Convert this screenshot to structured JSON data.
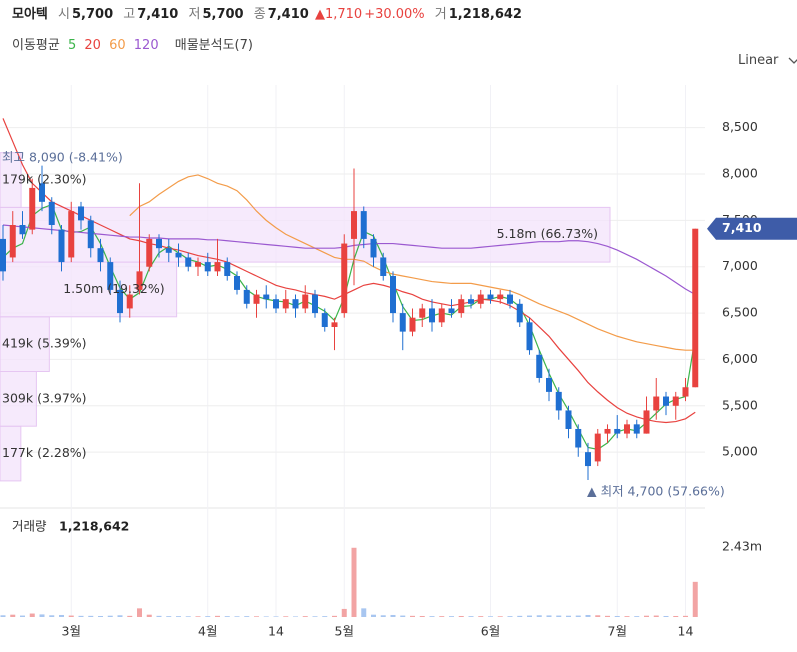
{
  "header": {
    "name": "모아텍",
    "fields": [
      {
        "label": "시",
        "value": "5,700"
      },
      {
        "label": "고",
        "value": "7,410"
      },
      {
        "label": "저",
        "value": "5,700"
      },
      {
        "label": "종",
        "value": "7,410"
      }
    ],
    "change": "▲1,710",
    "change_pct": "+30.00%",
    "volume_label": "거",
    "volume": "1,218,642"
  },
  "ma_title": "이동평균",
  "profile_title": "매물분석도(7)",
  "scale_mode": "Linear",
  "chart_data": {
    "type": "candlestick",
    "ylim": [
      4430,
      8960
    ],
    "yticks": [
      {
        "value": 5000,
        "label": "5,000"
      },
      {
        "value": 5500,
        "label": "5,500"
      },
      {
        "value": 6000,
        "label": "6,000"
      },
      {
        "value": 6500,
        "label": "6,500"
      },
      {
        "value": 7000,
        "label": "7,000"
      },
      {
        "value": 7500,
        "label": "7,500"
      },
      {
        "value": 8000,
        "label": "8,000"
      },
      {
        "value": 8500,
        "label": "8,500"
      }
    ],
    "grid": true,
    "up_color": "#e8423f",
    "down_color": "#1f6fd1",
    "categories": [
      null,
      null,
      null,
      null,
      null,
      null,
      null,
      "3월",
      null,
      null,
      null,
      null,
      null,
      null,
      null,
      null,
      null,
      null,
      null,
      null,
      null,
      "4월",
      null,
      null,
      null,
      null,
      null,
      null,
      "14",
      null,
      null,
      null,
      null,
      null,
      null,
      "5월",
      null,
      null,
      null,
      null,
      null,
      null,
      null,
      null,
      null,
      null,
      null,
      null,
      null,
      null,
      "6월",
      null,
      null,
      null,
      null,
      null,
      null,
      null,
      null,
      null,
      null,
      null,
      null,
      "7월",
      null,
      null,
      null,
      null,
      null,
      null,
      "14",
      null
    ],
    "ohlc": [
      [
        7300,
        7450,
        6850,
        6950
      ],
      [
        7100,
        7600,
        7050,
        7450
      ],
      [
        7450,
        7600,
        7300,
        7350
      ],
      [
        7400,
        7950,
        7350,
        7850
      ],
      [
        7900,
        8090,
        7600,
        7700
      ],
      [
        7700,
        7750,
        7350,
        7450
      ],
      [
        7400,
        7450,
        6950,
        7050
      ],
      [
        7100,
        7700,
        7050,
        7600
      ],
      [
        7650,
        7700,
        7400,
        7500
      ],
      [
        7500,
        7550,
        7100,
        7200
      ],
      [
        7200,
        7300,
        6950,
        7050
      ],
      [
        7050,
        7100,
        6700,
        6750
      ],
      [
        6750,
        6850,
        6400,
        6500
      ],
      [
        6550,
        6800,
        6450,
        6700
      ],
      [
        6750,
        7900,
        6700,
        6950
      ],
      [
        7000,
        7350,
        6950,
        7300
      ],
      [
        7300,
        7350,
        7100,
        7200
      ],
      [
        7200,
        7300,
        7050,
        7150
      ],
      [
        7150,
        7250,
        7000,
        7100
      ],
      [
        7100,
        7150,
        6950,
        7000
      ],
      [
        7000,
        7100,
        6900,
        7050
      ],
      [
        7050,
        7150,
        6900,
        6950
      ],
      [
        6950,
        7300,
        6900,
        7050
      ],
      [
        7050,
        7100,
        6850,
        6900
      ],
      [
        6900,
        6950,
        6700,
        6750
      ],
      [
        6750,
        6800,
        6550,
        6600
      ],
      [
        6600,
        6750,
        6450,
        6700
      ],
      [
        6700,
        6800,
        6550,
        6650
      ],
      [
        6650,
        6700,
        6500,
        6550
      ],
      [
        6550,
        6750,
        6500,
        6650
      ],
      [
        6650,
        6700,
        6450,
        6550
      ],
      [
        6550,
        6800,
        6500,
        6700
      ],
      [
        6700,
        6750,
        6450,
        6500
      ],
      [
        6500,
        6550,
        6300,
        6350
      ],
      [
        6350,
        6450,
        6100,
        6400
      ],
      [
        6500,
        7350,
        6450,
        7250
      ],
      [
        7300,
        8060,
        6800,
        7600
      ],
      [
        7600,
        7650,
        7200,
        7300
      ],
      [
        7300,
        7350,
        7000,
        7100
      ],
      [
        7100,
        7150,
        6850,
        6900
      ],
      [
        6900,
        6950,
        6400,
        6500
      ],
      [
        6500,
        6600,
        6100,
        6300
      ],
      [
        6300,
        6550,
        6250,
        6450
      ],
      [
        6450,
        6600,
        6350,
        6550
      ],
      [
        6550,
        6650,
        6300,
        6400
      ],
      [
        6400,
        6600,
        6350,
        6550
      ],
      [
        6550,
        6650,
        6450,
        6500
      ],
      [
        6500,
        6700,
        6450,
        6650
      ],
      [
        6650,
        6700,
        6550,
        6600
      ],
      [
        6600,
        6750,
        6550,
        6700
      ],
      [
        6700,
        6750,
        6600,
        6650
      ],
      [
        6650,
        6750,
        6600,
        6700
      ],
      [
        6700,
        6750,
        6550,
        6600
      ],
      [
        6600,
        6650,
        6350,
        6400
      ],
      [
        6400,
        6450,
        6050,
        6100
      ],
      [
        6050,
        6100,
        5750,
        5800
      ],
      [
        5800,
        5900,
        5550,
        5650
      ],
      [
        5650,
        5700,
        5350,
        5450
      ],
      [
        5450,
        5500,
        5150,
        5250
      ],
      [
        5250,
        5300,
        4950,
        5050
      ],
      [
        5000,
        5100,
        4700,
        4850
      ],
      [
        4900,
        5250,
        4850,
        5200
      ],
      [
        5200,
        5300,
        5100,
        5250
      ],
      [
        5250,
        5400,
        5150,
        5200
      ],
      [
        5200,
        5350,
        5150,
        5300
      ],
      [
        5300,
        5350,
        5150,
        5200
      ],
      [
        5200,
        5600,
        5200,
        5450
      ],
      [
        5450,
        5800,
        5350,
        5600
      ],
      [
        5600,
        5650,
        5400,
        5500
      ],
      [
        5500,
        5650,
        5350,
        5600
      ],
      [
        5600,
        5800,
        5550,
        5700
      ],
      [
        5700,
        7410,
        5700,
        7410
      ]
    ],
    "series": [
      {
        "name": "5",
        "color": "#3cb44b",
        "values": [
          7100,
          7200,
          7250,
          7550,
          7630,
          7670,
          7400,
          7370,
          7380,
          7430,
          7250,
          7000,
          6770,
          6650,
          6720,
          6980,
          7150,
          7220,
          7150,
          7080,
          7050,
          7000,
          7020,
          6970,
          6900,
          6750,
          6680,
          6650,
          6630,
          6620,
          6580,
          6630,
          6580,
          6520,
          6420,
          6670,
          7080,
          7380,
          7330,
          7100,
          6830,
          6570,
          6420,
          6430,
          6470,
          6500,
          6480,
          6570,
          6580,
          6650,
          6650,
          6680,
          6650,
          6570,
          6370,
          6100,
          5850,
          5630,
          5450,
          5250,
          5050,
          5030,
          5100,
          5220,
          5250,
          5230,
          5320,
          5420,
          5520,
          5570,
          5600,
          6240
        ]
      },
      {
        "name": "20",
        "color": "#e8423f",
        "values": [
          8600,
          8350,
          8100,
          7900,
          7800,
          7700,
          7650,
          7600,
          7550,
          7500,
          7450,
          7400,
          7350,
          7300,
          7280,
          7250,
          7230,
          7200,
          7180,
          7150,
          7120,
          7100,
          7080,
          7050,
          7000,
          6950,
          6900,
          6850,
          6800,
          6770,
          6750,
          6720,
          6700,
          6680,
          6650,
          6700,
          6750,
          6800,
          6820,
          6800,
          6770,
          6730,
          6700,
          6650,
          6620,
          6600,
          6580,
          6600,
          6620,
          6650,
          6640,
          6620,
          6580,
          6520,
          6450,
          6350,
          6250,
          6120,
          6000,
          5880,
          5750,
          5650,
          5560,
          5480,
          5420,
          5380,
          5350,
          5330,
          5320,
          5330,
          5360,
          5430
        ]
      },
      {
        "name": "60",
        "color": "#f39c4a",
        "values": [
          null,
          null,
          null,
          null,
          null,
          null,
          null,
          null,
          null,
          null,
          null,
          null,
          null,
          7550,
          7650,
          7700,
          7780,
          7850,
          7920,
          7970,
          7990,
          7950,
          7900,
          7870,
          7820,
          7720,
          7600,
          7500,
          7420,
          7350,
          7300,
          7250,
          7200,
          7150,
          7100,
          7080,
          7080,
          7060,
          7000,
          6950,
          6920,
          6900,
          6880,
          6860,
          6840,
          6830,
          6820,
          6820,
          6820,
          6800,
          6780,
          6760,
          6740,
          6700,
          6650,
          6600,
          6560,
          6520,
          6480,
          6430,
          6380,
          6330,
          6290,
          6250,
          6220,
          6190,
          6170,
          6150,
          6130,
          6110,
          6100,
          6100
        ]
      },
      {
        "name": "120",
        "color": "#9b59d0",
        "values": [
          7450,
          7440,
          7430,
          7420,
          7410,
          7400,
          7390,
          7380,
          7370,
          7360,
          7350,
          7340,
          7330,
          7320,
          7320,
          7310,
          7310,
          7300,
          7300,
          7300,
          7300,
          7290,
          7290,
          7280,
          7270,
          7260,
          7250,
          7240,
          7230,
          7220,
          7210,
          7200,
          7200,
          7200,
          7200,
          7210,
          7230,
          7240,
          7250,
          7250,
          7250,
          7240,
          7230,
          7220,
          7210,
          7200,
          7200,
          7200,
          7200,
          7210,
          7220,
          7230,
          7240,
          7250,
          7260,
          7270,
          7270,
          7270,
          7280,
          7280,
          7270,
          7250,
          7220,
          7180,
          7130,
          7080,
          7020,
          6960,
          6900,
          6830,
          6760,
          6700
        ]
      }
    ],
    "last_price": {
      "value": 7410,
      "label": "7,410",
      "color": "#3e5ca8"
    },
    "high_annotation": "최고 8,090 (-8.41%)",
    "low_annotation": "▲ 최저 4,700 (57.66%)",
    "profile": {
      "color": "#f3e3fb",
      "bins": [
        4690,
        5280,
        5870,
        6460,
        7050,
        7640,
        8230
      ],
      "values": [
        177000,
        309000,
        419000,
        1500000,
        5180000,
        179000
      ],
      "value_labels": [
        "177k (2.28%)",
        "309k (3.97%)",
        "419k (5.39%)",
        "1.50m (19.32%)",
        "5.18m (66.73%)",
        "179k (2.30%)"
      ]
    },
    "volume": {
      "title": "거래량",
      "ylim": [
        0,
        2600000
      ],
      "yticks": [
        {
          "value": 2430000,
          "label": "2.43m"
        }
      ],
      "up_color": "#f2a4a4",
      "down_color": "#a8c6f0",
      "values": [
        60000,
        80000,
        50000,
        120000,
        90000,
        60000,
        70000,
        50000,
        40000,
        40000,
        35000,
        45000,
        60000,
        40000,
        300000,
        80000,
        40000,
        30000,
        30000,
        25000,
        25000,
        30000,
        40000,
        30000,
        25000,
        30000,
        25000,
        20000,
        20000,
        25000,
        20000,
        30000,
        25000,
        30000,
        40000,
        280000,
        2400000,
        300000,
        80000,
        60000,
        70000,
        50000,
        40000,
        35000,
        30000,
        30000,
        30000,
        35000,
        30000,
        30000,
        25000,
        25000,
        30000,
        40000,
        50000,
        60000,
        55000,
        50000,
        45000,
        50000,
        70000,
        60000,
        40000,
        35000,
        30000,
        30000,
        45000,
        50000,
        35000,
        35000,
        40000,
        1218642
      ]
    }
  }
}
